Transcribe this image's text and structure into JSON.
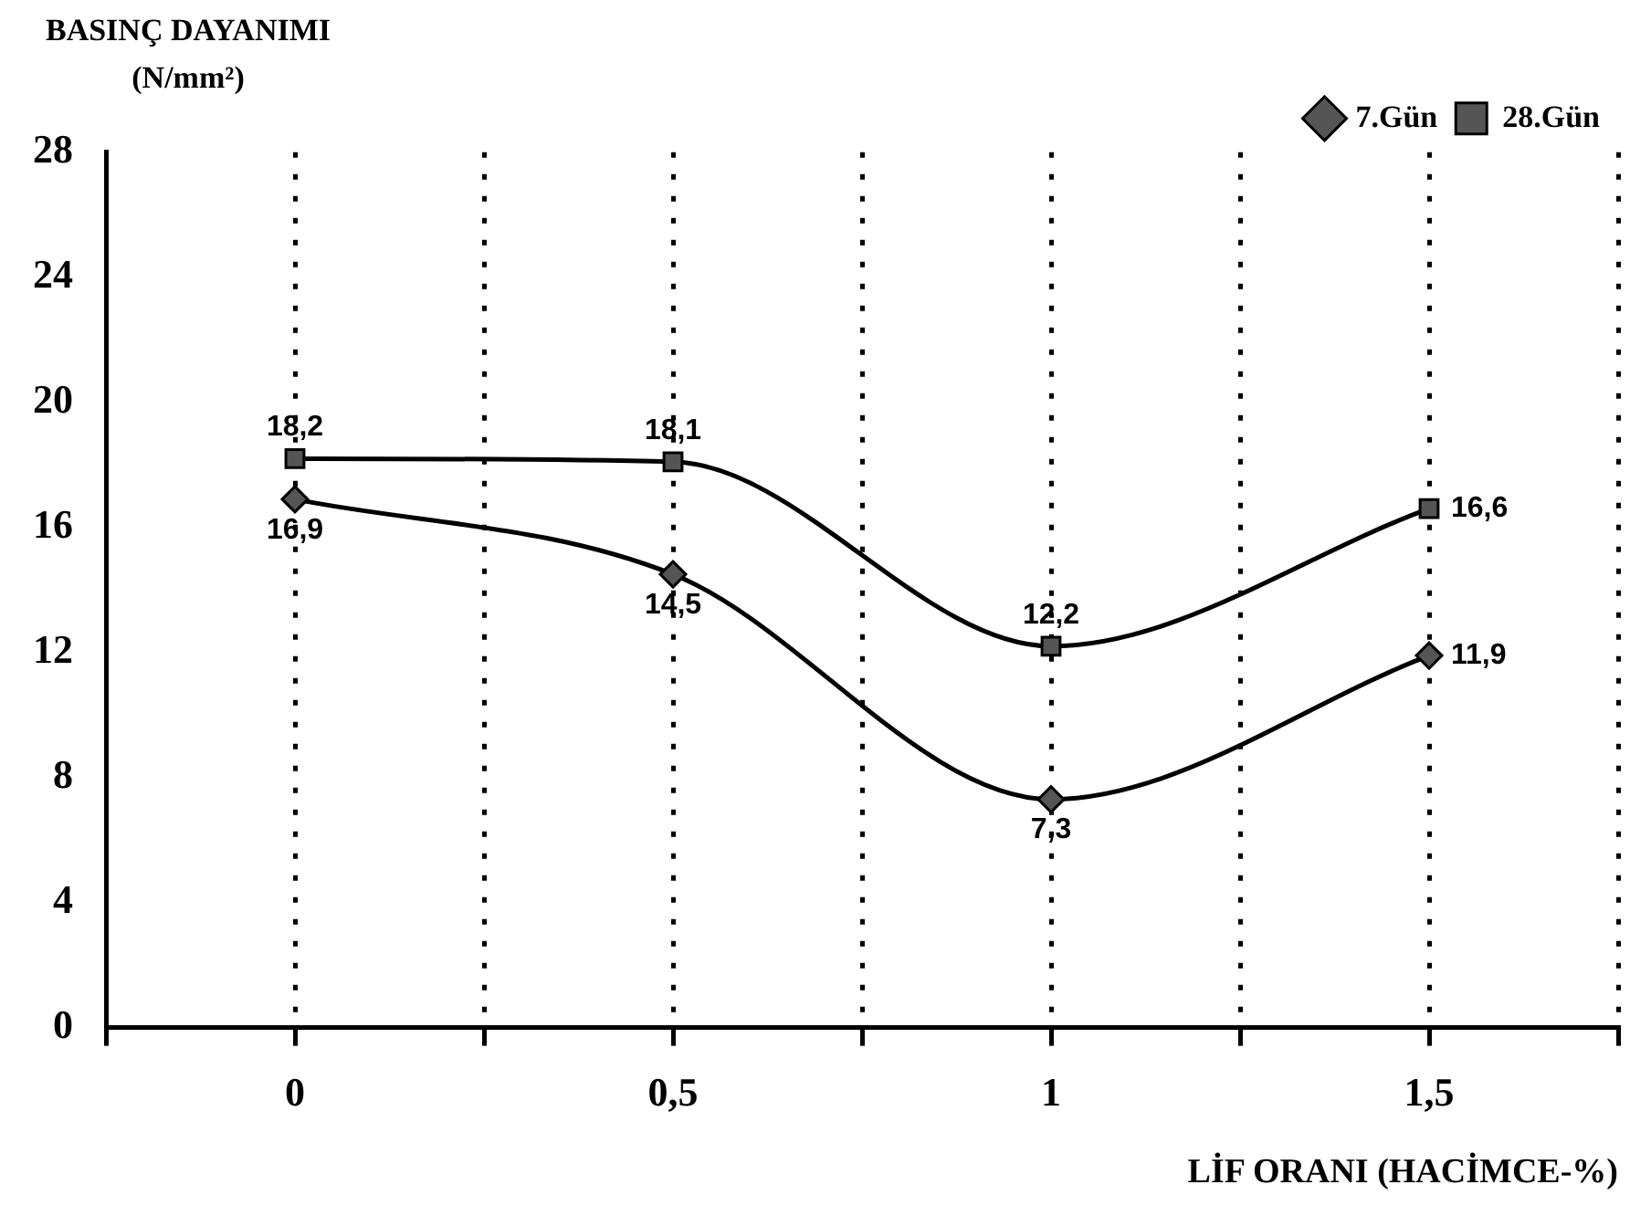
{
  "chart_data": {
    "type": "line",
    "ylabel": "BASINÇ DAYANIMI (N/mm²)",
    "xlabel": "LİF ORANI (HACİMCE-%)",
    "x": [
      0,
      0.5,
      1,
      1.5
    ],
    "series": [
      {
        "name": "7.Gün",
        "color": "#000000",
        "marker": "diamond",
        "values": [
          16.9,
          14.5,
          7.3,
          11.9
        ],
        "value_labels": [
          "16,9",
          "14,5",
          "7,3",
          "11,9"
        ]
      },
      {
        "name": "28.Gün",
        "color": "#000000",
        "marker": "square",
        "values": [
          18.2,
          18.1,
          12.2,
          16.6
        ],
        "value_labels": [
          "18,2",
          "18,1",
          "12,2",
          "16,6"
        ]
      }
    ],
    "xlim": [
      -0.25,
      1.75
    ],
    "xticks": [
      {
        "value": -0.25,
        "label": null
      },
      0,
      {
        "value": 0.25,
        "label": null
      },
      {
        "value": 0.5,
        "label": "0,5"
      },
      {
        "value": 0.75,
        "label": null
      },
      1,
      {
        "value": 1.25,
        "label": null
      },
      {
        "value": 1.5,
        "label": "1,5"
      },
      {
        "value": 1.75,
        "label": null
      }
    ],
    "ylim": [
      0,
      28
    ],
    "yticks": [
      0,
      4,
      8,
      12,
      16,
      20,
      24,
      28
    ],
    "grid": "x",
    "legend": "top right",
    "line_style": "solid"
  }
}
